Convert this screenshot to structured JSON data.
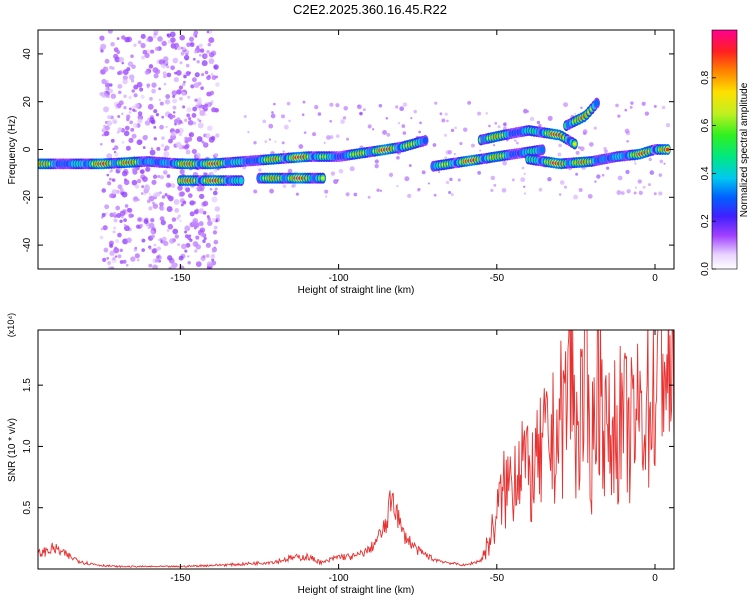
{
  "figure": {
    "title": "C2E2.2025.360.16.45.R22"
  },
  "chart_data": [
    {
      "type": "heatmap",
      "xlabel": "Height of straight line (km)",
      "ylabel": "Frequency (Hz)",
      "xlim": [
        -195,
        6
      ],
      "ylim": [
        -50,
        50
      ],
      "x_ticks": [
        -150,
        -100,
        -50,
        0
      ],
      "y_ticks": [
        -40,
        -20,
        0,
        20,
        40
      ],
      "colorbar": {
        "label": "Normalized spectral amplitude",
        "range": [
          0.0,
          1.0
        ],
        "ticks": [
          0.0,
          0.2,
          0.4,
          0.6,
          0.8
        ]
      },
      "ridges": [
        {
          "x": [
            -195,
            -175,
            -160,
            -150,
            -140,
            -130,
            -120,
            -110,
            -100,
            -90,
            -80,
            -72
          ],
          "freq": [
            -6,
            -6,
            -5,
            -6,
            -6,
            -5,
            -4,
            -3,
            -3,
            -1,
            1,
            4
          ]
        },
        {
          "x": [
            -150,
            -140,
            -130
          ],
          "freq": [
            -13,
            -13,
            -13
          ]
        },
        {
          "x": [
            -125,
            -115,
            -105
          ],
          "freq": [
            -12,
            -12,
            -12
          ]
        },
        {
          "x": [
            -70,
            -60,
            -50,
            -45,
            -35
          ],
          "freq": [
            -7,
            -5,
            -3,
            -2,
            0
          ]
        },
        {
          "x": [
            -55,
            -48,
            -40,
            -30,
            -25
          ],
          "freq": [
            4,
            6,
            8,
            6,
            2
          ]
        },
        {
          "x": [
            -40,
            -30,
            -20,
            -12,
            -5,
            0,
            4
          ],
          "freq": [
            -4,
            -6,
            -5,
            -3,
            -2,
            0,
            0
          ]
        },
        {
          "x": [
            -28,
            -22,
            -18
          ],
          "freq": [
            10,
            14,
            20
          ]
        }
      ]
    },
    {
      "type": "line",
      "xlabel": "Height of straight line (km)",
      "ylabel": "SNR (10 * v/v)",
      "y_multiplier": "(x10⁴)",
      "xlim": [
        -195,
        6
      ],
      "ylim": [
        0.0,
        1.95
      ],
      "x_ticks": [
        -150,
        -100,
        -50,
        0
      ],
      "y_ticks": [
        0.5,
        1.0,
        1.5
      ],
      "series": [
        {
          "color": "#e83030",
          "x": [
            -195,
            -190,
            -185,
            -180,
            -175,
            -170,
            -160,
            -150,
            -140,
            -130,
            -120,
            -115,
            -110,
            -105,
            -100,
            -95,
            -90,
            -85,
            -83,
            -80,
            -75,
            -70,
            -65,
            -60,
            -55,
            -52,
            -50,
            -48,
            -45,
            -42,
            -40,
            -37,
            -35,
            -32,
            -30,
            -28,
            -27,
            -25,
            -22,
            -20,
            -18,
            -15,
            -13,
            -10,
            -8,
            -5,
            -3,
            0,
            2,
            4,
            6
          ],
          "values": [
            0.12,
            0.17,
            0.1,
            0.05,
            0.03,
            0.02,
            0.02,
            0.02,
            0.03,
            0.04,
            0.06,
            0.09,
            0.1,
            0.05,
            0.1,
            0.1,
            0.16,
            0.35,
            0.62,
            0.3,
            0.15,
            0.08,
            0.05,
            0.03,
            0.07,
            0.25,
            0.45,
            0.62,
            0.75,
            1.0,
            0.72,
            0.85,
            1.0,
            1.05,
            1.2,
            1.35,
            1.85,
            1.1,
            1.45,
            0.95,
            1.7,
            1.0,
            1.15,
            1.2,
            1.1,
            1.25,
            1.35,
            1.4,
            1.95,
            1.55,
            1.45
          ]
        }
      ]
    }
  ]
}
